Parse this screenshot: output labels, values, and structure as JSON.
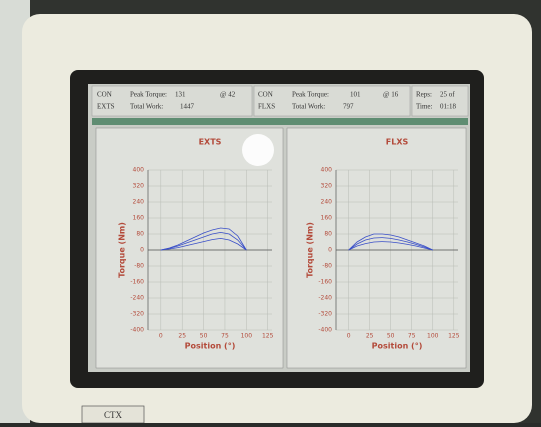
{
  "header": {
    "left": {
      "line1": [
        "CON",
        "Peak Torque:",
        "131",
        "@ 42"
      ],
      "line2": [
        "EXTS",
        "Total Work:",
        "1447"
      ]
    },
    "middle": {
      "line1": [
        "CON",
        "Peak Torque:",
        "101",
        "@ 16"
      ],
      "line2": [
        "FLXS",
        "Total Work:",
        "797"
      ]
    },
    "right": {
      "line1": [
        "Reps:",
        "25 of"
      ],
      "line2": [
        "Time:",
        "01:18"
      ]
    }
  },
  "bezel_label": "CTX",
  "chart_data": [
    {
      "type": "line",
      "title": "EXTS",
      "x_label": "Position (°)",
      "y_label": "Torque (Nm)",
      "x": [
        0,
        10,
        20,
        30,
        40,
        50,
        60,
        70,
        80,
        90,
        100
      ],
      "series": [
        {
          "color": "#3a4fc8",
          "values": [
            0,
            10,
            25,
            45,
            65,
            85,
            100,
            110,
            105,
            70,
            0
          ]
        },
        {
          "color": "#3a4fc8",
          "values": [
            0,
            8,
            20,
            35,
            50,
            65,
            80,
            88,
            80,
            50,
            0
          ]
        },
        {
          "color": "#3a4fc8",
          "values": [
            0,
            5,
            12,
            22,
            32,
            42,
            52,
            58,
            50,
            30,
            0
          ]
        }
      ],
      "xlim": [
        -15,
        130
      ],
      "xticks": [
        0,
        25,
        50,
        75,
        100,
        125
      ],
      "ylim": [
        -400,
        400
      ],
      "yticks": [
        -400,
        -320,
        -240,
        -160,
        -80,
        0,
        80,
        160,
        240,
        320,
        400
      ],
      "grid": true
    },
    {
      "type": "line",
      "title": "FLXS",
      "x_label": "Position (°)",
      "y_label": "Torque (Nm)",
      "x": [
        0,
        10,
        20,
        30,
        40,
        50,
        60,
        70,
        80,
        90,
        100
      ],
      "series": [
        {
          "color": "#3a4fc8",
          "values": [
            0,
            40,
            65,
            80,
            80,
            75,
            65,
            50,
            35,
            20,
            0
          ]
        },
        {
          "color": "#3a4fc8",
          "values": [
            0,
            30,
            50,
            60,
            62,
            58,
            50,
            40,
            28,
            15,
            0
          ]
        },
        {
          "color": "#3a4fc8",
          "values": [
            0,
            20,
            32,
            40,
            42,
            40,
            35,
            28,
            20,
            10,
            0
          ]
        }
      ],
      "xlim": [
        -15,
        130
      ],
      "xticks": [
        0,
        25,
        50,
        75,
        100,
        125
      ],
      "ylim": [
        -400,
        400
      ],
      "yticks": [
        -400,
        -320,
        -240,
        -160,
        -80,
        0,
        80,
        160,
        240,
        320,
        400
      ],
      "grid": true
    }
  ]
}
